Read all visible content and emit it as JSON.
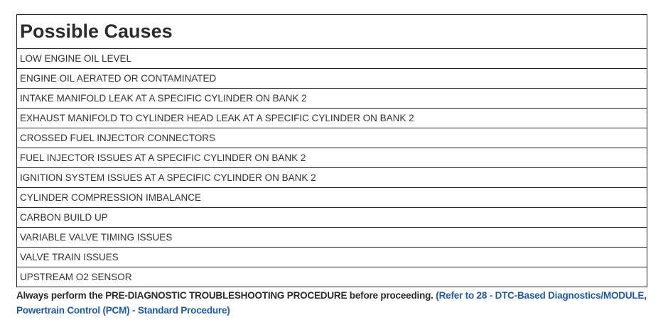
{
  "title": "Possible Causes",
  "causes": [
    "LOW ENGINE OIL LEVEL",
    "ENGINE OIL AERATED OR CONTAMINATED",
    "INTAKE MANIFOLD LEAK AT A SPECIFIC CYLINDER ON BANK 2",
    "EXHAUST MANIFOLD TO CYLINDER HEAD LEAK AT A SPECIFIC CYLINDER ON BANK 2",
    "CROSSED FUEL INJECTOR CONNECTORS",
    "FUEL INJECTOR ISSUES AT A SPECIFIC CYLINDER ON BANK 2",
    "IGNITION SYSTEM ISSUES AT A SPECIFIC CYLINDER ON BANK 2",
    "CYLINDER COMPRESSION IMBALANCE",
    "CARBON BUILD UP",
    "VARIABLE VALVE TIMING ISSUES",
    "VALVE TRAIN ISSUES",
    "UPSTREAM O2 SENSOR"
  ],
  "note": {
    "text": "Always perform the PRE-DIAGNOSTIC TROUBLESHOOTING PROCEDURE before proceeding.",
    "link": "(Refer to 28 - DTC-Based Diagnostics/MODULE, Powertrain Control (PCM) - Standard Procedure)",
    "link_color": "#1f5aa6"
  }
}
